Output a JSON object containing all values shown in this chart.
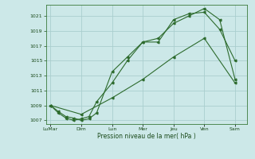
{
  "title": "",
  "xlabel": "Pression niveau de la mer( hPa )",
  "background_color": "#cce8e8",
  "grid_color": "#aacece",
  "line_color": "#2d6b2d",
  "ylim": [
    1006.5,
    1022.5
  ],
  "yticks": [
    1007,
    1009,
    1011,
    1013,
    1015,
    1017,
    1019,
    1021
  ],
  "x_labels": [
    "LuMar",
    "Dim",
    "Lun",
    "Mer",
    "Jeu",
    "Ven",
    "Sam"
  ],
  "x_positions": [
    0,
    2,
    4,
    6,
    8,
    10,
    12
  ],
  "xlim": [
    -0.3,
    12.8
  ],
  "line1": {
    "x": [
      0,
      0.5,
      1.0,
      1.5,
      2.0,
      2.5,
      3.0,
      4.0,
      5.0,
      6.0,
      7.0,
      8.0,
      9.0,
      10.0,
      11.0,
      12.0
    ],
    "y": [
      1009,
      1008.2,
      1007.5,
      1007.3,
      1007.0,
      1007.2,
      1008.0,
      1013.5,
      1015.5,
      1017.5,
      1017.5,
      1020.5,
      1021.3,
      1021.5,
      1019.2,
      1015.0
    ]
  },
  "line2": {
    "x": [
      0,
      0.5,
      1.0,
      1.5,
      2.0,
      2.5,
      3.0,
      4.0,
      5.0,
      6.0,
      7.0,
      8.0,
      9.0,
      10.0,
      11.0,
      12.0
    ],
    "y": [
      1009,
      1008.0,
      1007.3,
      1007.0,
      1007.2,
      1007.5,
      1009.5,
      1012.0,
      1015.0,
      1017.5,
      1018.0,
      1020.0,
      1021.0,
      1022.0,
      1020.5,
      1012.5
    ]
  },
  "line3": {
    "x": [
      0,
      2,
      4,
      6,
      8,
      10,
      12
    ],
    "y": [
      1009,
      1007.8,
      1010.0,
      1012.5,
      1015.5,
      1018.0,
      1012.0
    ]
  }
}
